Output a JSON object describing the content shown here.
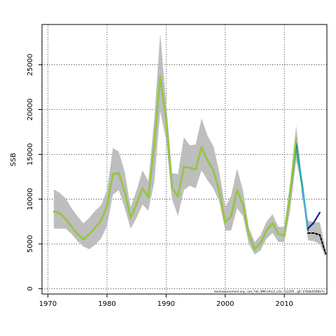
{
  "chart_data": {
    "type": "line",
    "title": "",
    "xlabel": "",
    "ylabel": "SSB",
    "xlim": [
      1969.0,
      2017.2
    ],
    "ylim": [
      -600,
      29500
    ],
    "xticks": [
      1970,
      1980,
      1990,
      2000,
      2010
    ],
    "yticks": [
      0,
      5000,
      10000,
      15000,
      20000,
      25000
    ],
    "grid": true,
    "footnote": "stockassessment.org, cod_7ek_WKCeltic2_v2a, r12265 , git: b7bbb5048e7c",
    "band": {
      "x": [
        1971,
        1972,
        1973,
        1974,
        1975,
        1976,
        1977,
        1978,
        1979,
        1980,
        1981,
        1982,
        1983,
        1984,
        1985,
        1986,
        1987,
        1988,
        1989,
        1990,
        1991,
        1992,
        1993,
        1994,
        1995,
        1996,
        1997,
        1998,
        1999,
        2000,
        2001,
        2002,
        2003,
        2004,
        2005,
        2006,
        2007,
        2008,
        2009,
        2010,
        2011,
        2012,
        2013,
        2014,
        2015,
        2016,
        2017
      ],
      "upper": [
        11100,
        10700,
        10100,
        9000,
        8100,
        7300,
        7900,
        8700,
        9300,
        11000,
        15700,
        15300,
        13000,
        9100,
        11000,
        13200,
        12000,
        19000,
        28500,
        20800,
        12900,
        12800,
        16900,
        16000,
        16100,
        19000,
        17100,
        15900,
        13000,
        9100,
        10400,
        13400,
        11000,
        6800,
        5200,
        6000,
        7500,
        8300,
        6900,
        6900,
        12000,
        18200,
        12000,
        7600,
        7400,
        7400,
        4400
      ],
      "lower": [
        6700,
        6700,
        6700,
        6100,
        5300,
        4700,
        4400,
        4900,
        5600,
        7000,
        10500,
        11000,
        9000,
        6700,
        7900,
        9400,
        8700,
        11900,
        19800,
        16600,
        10000,
        8100,
        11000,
        11500,
        11200,
        13200,
        12100,
        11200,
        9700,
        6500,
        6500,
        9000,
        8100,
        5000,
        3800,
        4300,
        5600,
        6200,
        5200,
        5200,
        8800,
        14300,
        11400,
        5400,
        5300,
        5000,
        3500
      ]
    },
    "series": [
      {
        "color": "#555555",
        "x": [
          1971,
          1972,
          1973,
          1974,
          1975,
          1976,
          1977,
          1978,
          1979,
          1980,
          1981,
          1982,
          1983,
          1984,
          1985,
          1986,
          1987,
          1988,
          1989,
          1990,
          1991,
          1992,
          1993,
          1994,
          1995,
          1996,
          1997,
          1998,
          1999,
          2000,
          2001,
          2002,
          2003,
          2004,
          2005,
          2006,
          2007,
          2008,
          2009,
          2010,
          2011,
          2012,
          2013,
          2014
        ],
        "values": [
          8600,
          8400,
          7800,
          6900,
          6100,
          5500,
          6100,
          6800,
          7600,
          9300,
          12800,
          12900,
          10800,
          7900,
          9500,
          11200,
          10200,
          16200,
          23700,
          18900,
          11200,
          10300,
          13600,
          13500,
          13300,
          15800,
          14300,
          13200,
          10900,
          7400,
          8100,
          11000,
          9400,
          6000,
          4400,
          5100,
          6500,
          7300,
          6100,
          5900,
          10800,
          16200,
          11500,
          6500
        ]
      },
      {
        "color": "#1a8a4a",
        "x": [
          1971,
          1972,
          1973,
          1974,
          1975,
          1976,
          1977,
          1978,
          1979,
          1980,
          1981,
          1982,
          1983,
          1984,
          1985,
          1986,
          1987,
          1988,
          1989,
          1990,
          1991,
          1992,
          1993,
          1994,
          1995,
          1996,
          1997,
          1998,
          1999,
          2000,
          2001,
          2002,
          2003,
          2004,
          2005,
          2006,
          2007,
          2008,
          2009,
          2010,
          2011,
          2012,
          2013,
          2014
        ],
        "values": [
          8600,
          8400,
          7800,
          6900,
          6100,
          5500,
          6100,
          6800,
          7600,
          9300,
          12800,
          12900,
          10800,
          7900,
          9500,
          11200,
          10200,
          16200,
          23700,
          18900,
          11200,
          10300,
          13600,
          13500,
          13300,
          15800,
          14300,
          13200,
          10900,
          7400,
          8100,
          11000,
          9400,
          6000,
          4400,
          5100,
          6500,
          7300,
          6100,
          5900,
          10800,
          16200,
          11500,
          6500
        ]
      },
      {
        "color": "#9acd32",
        "x": [
          1971,
          1972,
          1973,
          1974,
          1975,
          1976,
          1977,
          1978,
          1979,
          1980,
          1981,
          1982,
          1983,
          1984,
          1985,
          1986,
          1987,
          1988,
          1989,
          1990,
          1991,
          1992,
          1993,
          1994,
          1995,
          1996,
          1997,
          1998,
          1999,
          2000,
          2001,
          2002,
          2003,
          2004,
          2005,
          2006,
          2007,
          2008,
          2009,
          2010,
          2011,
          2012
        ],
        "values": [
          8600,
          8400,
          7800,
          6900,
          6100,
          5500,
          6100,
          6800,
          7600,
          9300,
          12800,
          12900,
          10800,
          7900,
          9500,
          11200,
          10200,
          16200,
          23700,
          18900,
          11200,
          10300,
          13600,
          13500,
          13300,
          15800,
          14300,
          13200,
          10900,
          7400,
          8100,
          11000,
          9400,
          6000,
          4400,
          5100,
          6500,
          7300,
          6100,
          5900,
          10900,
          16800
        ]
      },
      {
        "color": "#20b2aa",
        "x": [
          2012,
          2013,
          2014
        ],
        "values": [
          15600,
          11800,
          6700
        ]
      },
      {
        "color": "#5aa9e6",
        "x": [
          2013,
          2014,
          2015
        ],
        "values": [
          11000,
          6900,
          7200
        ]
      },
      {
        "color": "#1c1c8c",
        "x": [
          2014,
          2015,
          2016
        ],
        "values": [
          6700,
          7400,
          8500
        ]
      },
      {
        "color": "#000000",
        "dashed": true,
        "x": [
          2014,
          2015,
          2016,
          2017
        ],
        "values": [
          6200,
          6200,
          6000,
          3900
        ]
      }
    ]
  }
}
